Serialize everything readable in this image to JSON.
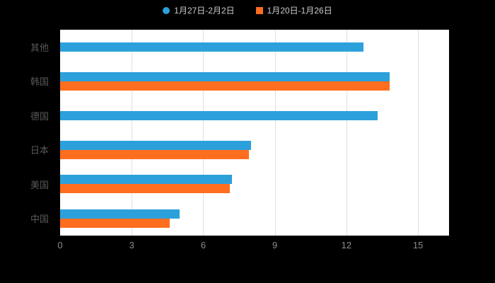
{
  "chart_data": {
    "type": "bar",
    "orientation": "horizontal",
    "title": "",
    "categories": [
      "其他",
      "韩国",
      "德国",
      "日本",
      "美国",
      "中国"
    ],
    "series": [
      {
        "name": "1月27日-2月2日",
        "color": "#2CA0DB",
        "marker": "circle",
        "values": [
          12.7,
          13.8,
          13.3,
          8.0,
          7.2,
          5.0
        ]
      },
      {
        "name": "1月20日-1月26日",
        "color": "#FF6D1F",
        "marker": "square",
        "values": [
          null,
          13.8,
          null,
          7.9,
          7.1,
          4.6
        ]
      }
    ],
    "x_ticks": [
      "0",
      "3",
      "6",
      "9",
      "12",
      "15"
    ],
    "x_tick_values": [
      0,
      3,
      6,
      9,
      12,
      15
    ],
    "xlim": [
      0,
      16.3
    ],
    "grid": true,
    "legend_position": "top",
    "colors": {
      "page_background": "#000000",
      "plot_background": "#ffffff",
      "gridline": "#e0e0e0",
      "axis_label": "#8c8c8c",
      "category_label": "#595959",
      "legend_text": "#cccccc"
    }
  }
}
